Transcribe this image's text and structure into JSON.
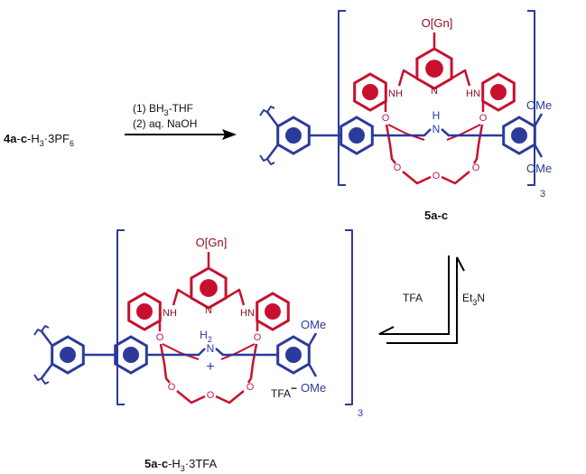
{
  "reaction": {
    "reactant": [
      "4a",
      "-",
      "c",
      "-H",
      "3",
      "·3PF",
      "6"
    ],
    "conditions": [
      [
        "(1) BH",
        "3",
        "-THF"
      ],
      [
        "(2) aq. NaOH"
      ]
    ],
    "equilibrium": {
      "forward": "TFA",
      "reverse": [
        "Et",
        "3",
        "N"
      ]
    }
  },
  "product": {
    "gn": "O[Gn]",
    "nh": "NH",
    "n_py": "N",
    "hn": "HN",
    "h": "H",
    "n_axle": "N",
    "ome": [
      "OMe",
      "OMe"
    ],
    "oxygens": [
      "O",
      "O",
      "O",
      "O",
      "O"
    ],
    "count": "3",
    "name": [
      "5a",
      "-",
      "c"
    ]
  },
  "salt": {
    "gn": "O[Gn]",
    "nh": "NH",
    "n_py": "N",
    "hn": "HN",
    "h2": [
      "H",
      "2"
    ],
    "n_axle": "N",
    "plus": "+",
    "ome": [
      "OMe",
      "OMe"
    ],
    "oxygens": [
      "O",
      "O",
      "O",
      "O",
      "O"
    ],
    "count": "3",
    "counterion": [
      "TFA",
      "−"
    ],
    "name": [
      "5a",
      "-",
      "c",
      "-H",
      "3",
      "·3TFA"
    ]
  }
}
